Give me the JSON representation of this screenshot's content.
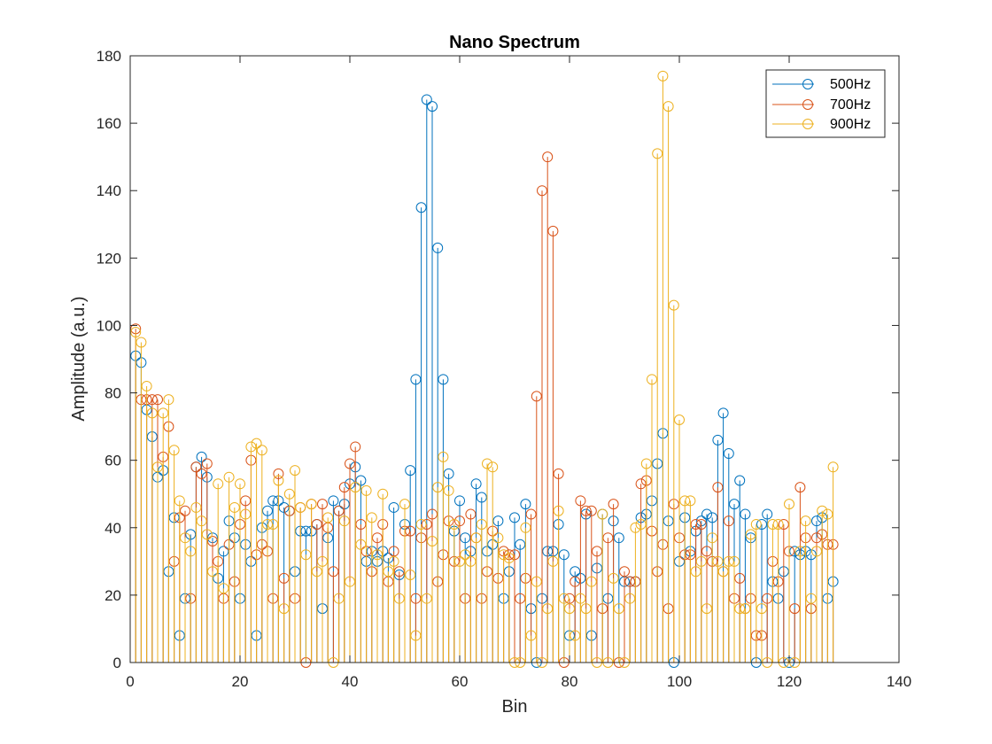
{
  "chart_data": {
    "type": "stem",
    "title": "Nano Spectrum",
    "xlabel": "Bin",
    "ylabel": "Amplitude (a.u.)",
    "xlim": [
      0,
      140
    ],
    "ylim": [
      0,
      180
    ],
    "xticks": [
      0,
      20,
      40,
      60,
      80,
      100,
      120,
      140
    ],
    "yticks": [
      0,
      20,
      40,
      60,
      80,
      100,
      120,
      140,
      160,
      180
    ],
    "grid": false,
    "legend_position": "top-right",
    "x": [
      1,
      2,
      3,
      4,
      5,
      6,
      7,
      8,
      9,
      10,
      11,
      12,
      13,
      14,
      15,
      16,
      17,
      18,
      19,
      20,
      21,
      22,
      23,
      24,
      25,
      26,
      27,
      28,
      29,
      30,
      31,
      32,
      33,
      34,
      35,
      36,
      37,
      38,
      39,
      40,
      41,
      42,
      43,
      44,
      45,
      46,
      47,
      48,
      49,
      50,
      51,
      52,
      53,
      54,
      55,
      56,
      57,
      58,
      59,
      60,
      61,
      62,
      63,
      64,
      65,
      66,
      67,
      68,
      69,
      70,
      71,
      72,
      73,
      74,
      75,
      76,
      77,
      78,
      79,
      80,
      81,
      82,
      83,
      84,
      85,
      86,
      87,
      88,
      89,
      90,
      91,
      92,
      93,
      94,
      95,
      96,
      97,
      98,
      99,
      100,
      101,
      102,
      103,
      104,
      105,
      106,
      107,
      108,
      109,
      110,
      111,
      112,
      113,
      114,
      115,
      116,
      117,
      118,
      119,
      120,
      121,
      122,
      123,
      124,
      125,
      126,
      127,
      128
    ],
    "series": [
      {
        "name": "500Hz",
        "color": "#0072BD",
        "values": [
          91,
          89,
          75,
          67,
          55,
          57,
          27,
          43,
          8,
          19,
          38,
          58,
          61,
          55,
          37,
          25,
          33,
          42,
          37,
          19,
          35,
          30,
          8,
          40,
          45,
          48,
          48,
          46,
          45,
          27,
          39,
          39,
          39,
          41,
          16,
          37,
          48,
          45,
          47,
          53,
          58,
          54,
          30,
          33,
          30,
          33,
          31,
          46,
          26,
          41,
          57,
          84,
          135,
          167,
          165,
          123,
          84,
          56,
          39,
          48,
          37,
          33,
          53,
          49,
          33,
          35,
          42,
          19,
          27,
          43,
          35,
          47,
          16,
          0,
          19,
          33,
          33,
          41,
          32,
          8,
          27,
          25,
          44,
          8,
          28,
          44,
          19,
          42,
          37,
          24,
          24,
          24,
          43,
          44,
          48,
          59,
          68,
          42,
          0,
          30,
          43,
          33,
          39,
          42,
          44,
          43,
          66,
          74,
          62,
          47,
          54,
          44,
          37,
          0,
          41,
          44,
          24,
          19,
          27,
          0,
          33,
          32,
          33,
          32,
          42,
          43,
          19,
          24
        ]
      },
      {
        "name": "700Hz",
        "color": "#D95319",
        "values": [
          99,
          78,
          78,
          78,
          78,
          61,
          70,
          30,
          43,
          45,
          19,
          58,
          56,
          59,
          36,
          30,
          19,
          35,
          24,
          41,
          48,
          60,
          32,
          35,
          33,
          19,
          56,
          25,
          45,
          19,
          46,
          0,
          47,
          41,
          47,
          40,
          27,
          45,
          52,
          59,
          64,
          41,
          33,
          27,
          37,
          41,
          24,
          33,
          27,
          39,
          39,
          19,
          37,
          41,
          44,
          24,
          32,
          42,
          30,
          42,
          19,
          44,
          37,
          19,
          27,
          39,
          25,
          33,
          32,
          32,
          19,
          25,
          44,
          79,
          140,
          150,
          128,
          56,
          0,
          19,
          24,
          48,
          45,
          45,
          33,
          16,
          37,
          47,
          0,
          27,
          24,
          24,
          53,
          54,
          39,
          27,
          35,
          16,
          47,
          37,
          32,
          32,
          41,
          41,
          33,
          30,
          52,
          27,
          42,
          19,
          25,
          16,
          19,
          8,
          8,
          19,
          30,
          24,
          41,
          33,
          16,
          52,
          37,
          16,
          37,
          38,
          35,
          35
        ]
      },
      {
        "name": "900Hz",
        "color": "#EDB120",
        "values": [
          98,
          95,
          82,
          74,
          58,
          74,
          78,
          63,
          48,
          37,
          33,
          46,
          42,
          38,
          27,
          53,
          22,
          55,
          46,
          53,
          44,
          64,
          65,
          63,
          41,
          41,
          54,
          16,
          50,
          57,
          46,
          32,
          47,
          27,
          30,
          43,
          0,
          19,
          42,
          24,
          52,
          35,
          51,
          43,
          32,
          50,
          27,
          30,
          19,
          47,
          26,
          8,
          41,
          19,
          36,
          52,
          61,
          51,
          41,
          30,
          32,
          30,
          37,
          41,
          59,
          58,
          37,
          32,
          31,
          0,
          0,
          40,
          8,
          24,
          0,
          16,
          30,
          45,
          19,
          16,
          8,
          19,
          16,
          24,
          0,
          44,
          0,
          25,
          16,
          0,
          19,
          40,
          41,
          59,
          84,
          151,
          174,
          165,
          106,
          72,
          48,
          48,
          27,
          30,
          16,
          37,
          30,
          27,
          30,
          30,
          16,
          16,
          38,
          41,
          16,
          0,
          41,
          41,
          0,
          47,
          0,
          33,
          42,
          19,
          33,
          45,
          44,
          58
        ]
      }
    ]
  }
}
